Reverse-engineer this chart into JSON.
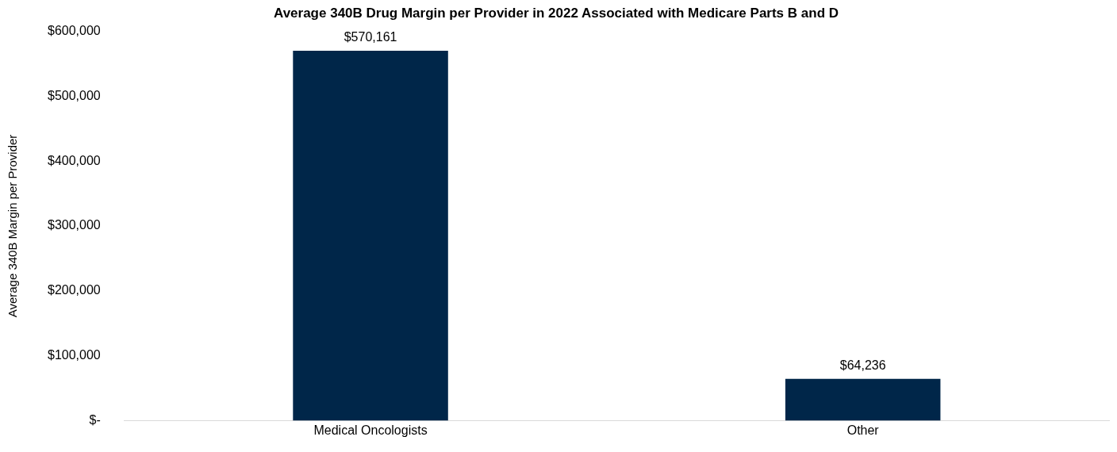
{
  "chart_data": {
    "type": "bar",
    "title": "Average 340B Drug Margin per Provider in 2022 Associated with Medicare Parts B and D",
    "ylabel": "Average 340B Margin per Provider",
    "categories": [
      "Medical Oncologists",
      "Other"
    ],
    "values": [
      570161,
      64236
    ],
    "color": "#002649",
    "value_labels": [
      "$570,161",
      "$64,236"
    ],
    "ylim": [
      0,
      600000
    ],
    "yticks": [
      {
        "value": 0,
        "label": "$-"
      },
      {
        "value": 100000,
        "label": "$100,000"
      },
      {
        "value": 200000,
        "label": "$200,000"
      },
      {
        "value": 300000,
        "label": "$300,000"
      },
      {
        "value": 400000,
        "label": "$400,000"
      },
      {
        "value": 500000,
        "label": "$500,000"
      },
      {
        "value": 600000,
        "label": "$600,000"
      }
    ],
    "grid": false,
    "legend": false
  }
}
